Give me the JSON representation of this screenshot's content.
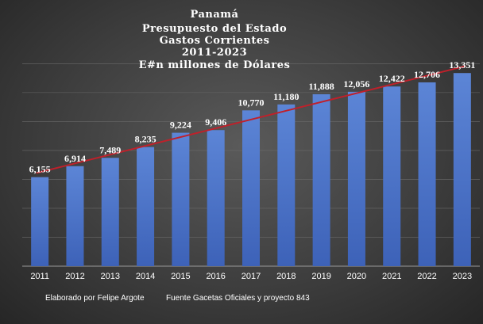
{
  "chart_data": {
    "type": "bar",
    "title_lines": [
      "Panamá",
      "Presupuesto del Estado",
      "Gastos Corrientes",
      "2011-2023",
      "E#n millones de Dólares"
    ],
    "categories": [
      "2011",
      "2012",
      "2013",
      "2014",
      "2015",
      "2016",
      "2017",
      "2018",
      "2019",
      "2020",
      "2021",
      "2022",
      "2023"
    ],
    "values": [
      6155,
      6914,
      7489,
      8235,
      9224,
      9406,
      10770,
      11180,
      11888,
      12056,
      12422,
      12706,
      13351
    ],
    "data_labels": [
      "6,155",
      "6,914",
      "7,489",
      "8,235",
      "9,224",
      "9,406",
      "10,770",
      "11,180",
      "11,888",
      "12,056",
      "12,422",
      "12,706",
      "13,351"
    ],
    "ylim": [
      0,
      15000
    ],
    "grid": true,
    "trendline": {
      "type": "linear",
      "color": "#c0202a"
    },
    "bar_color": "#4a72c4",
    "xlabel": "",
    "ylabel": ""
  },
  "footer": {
    "author": "Elaborado por Felipe Argote",
    "source": "Fuente Gacetas Oficiales y proyecto 843"
  }
}
